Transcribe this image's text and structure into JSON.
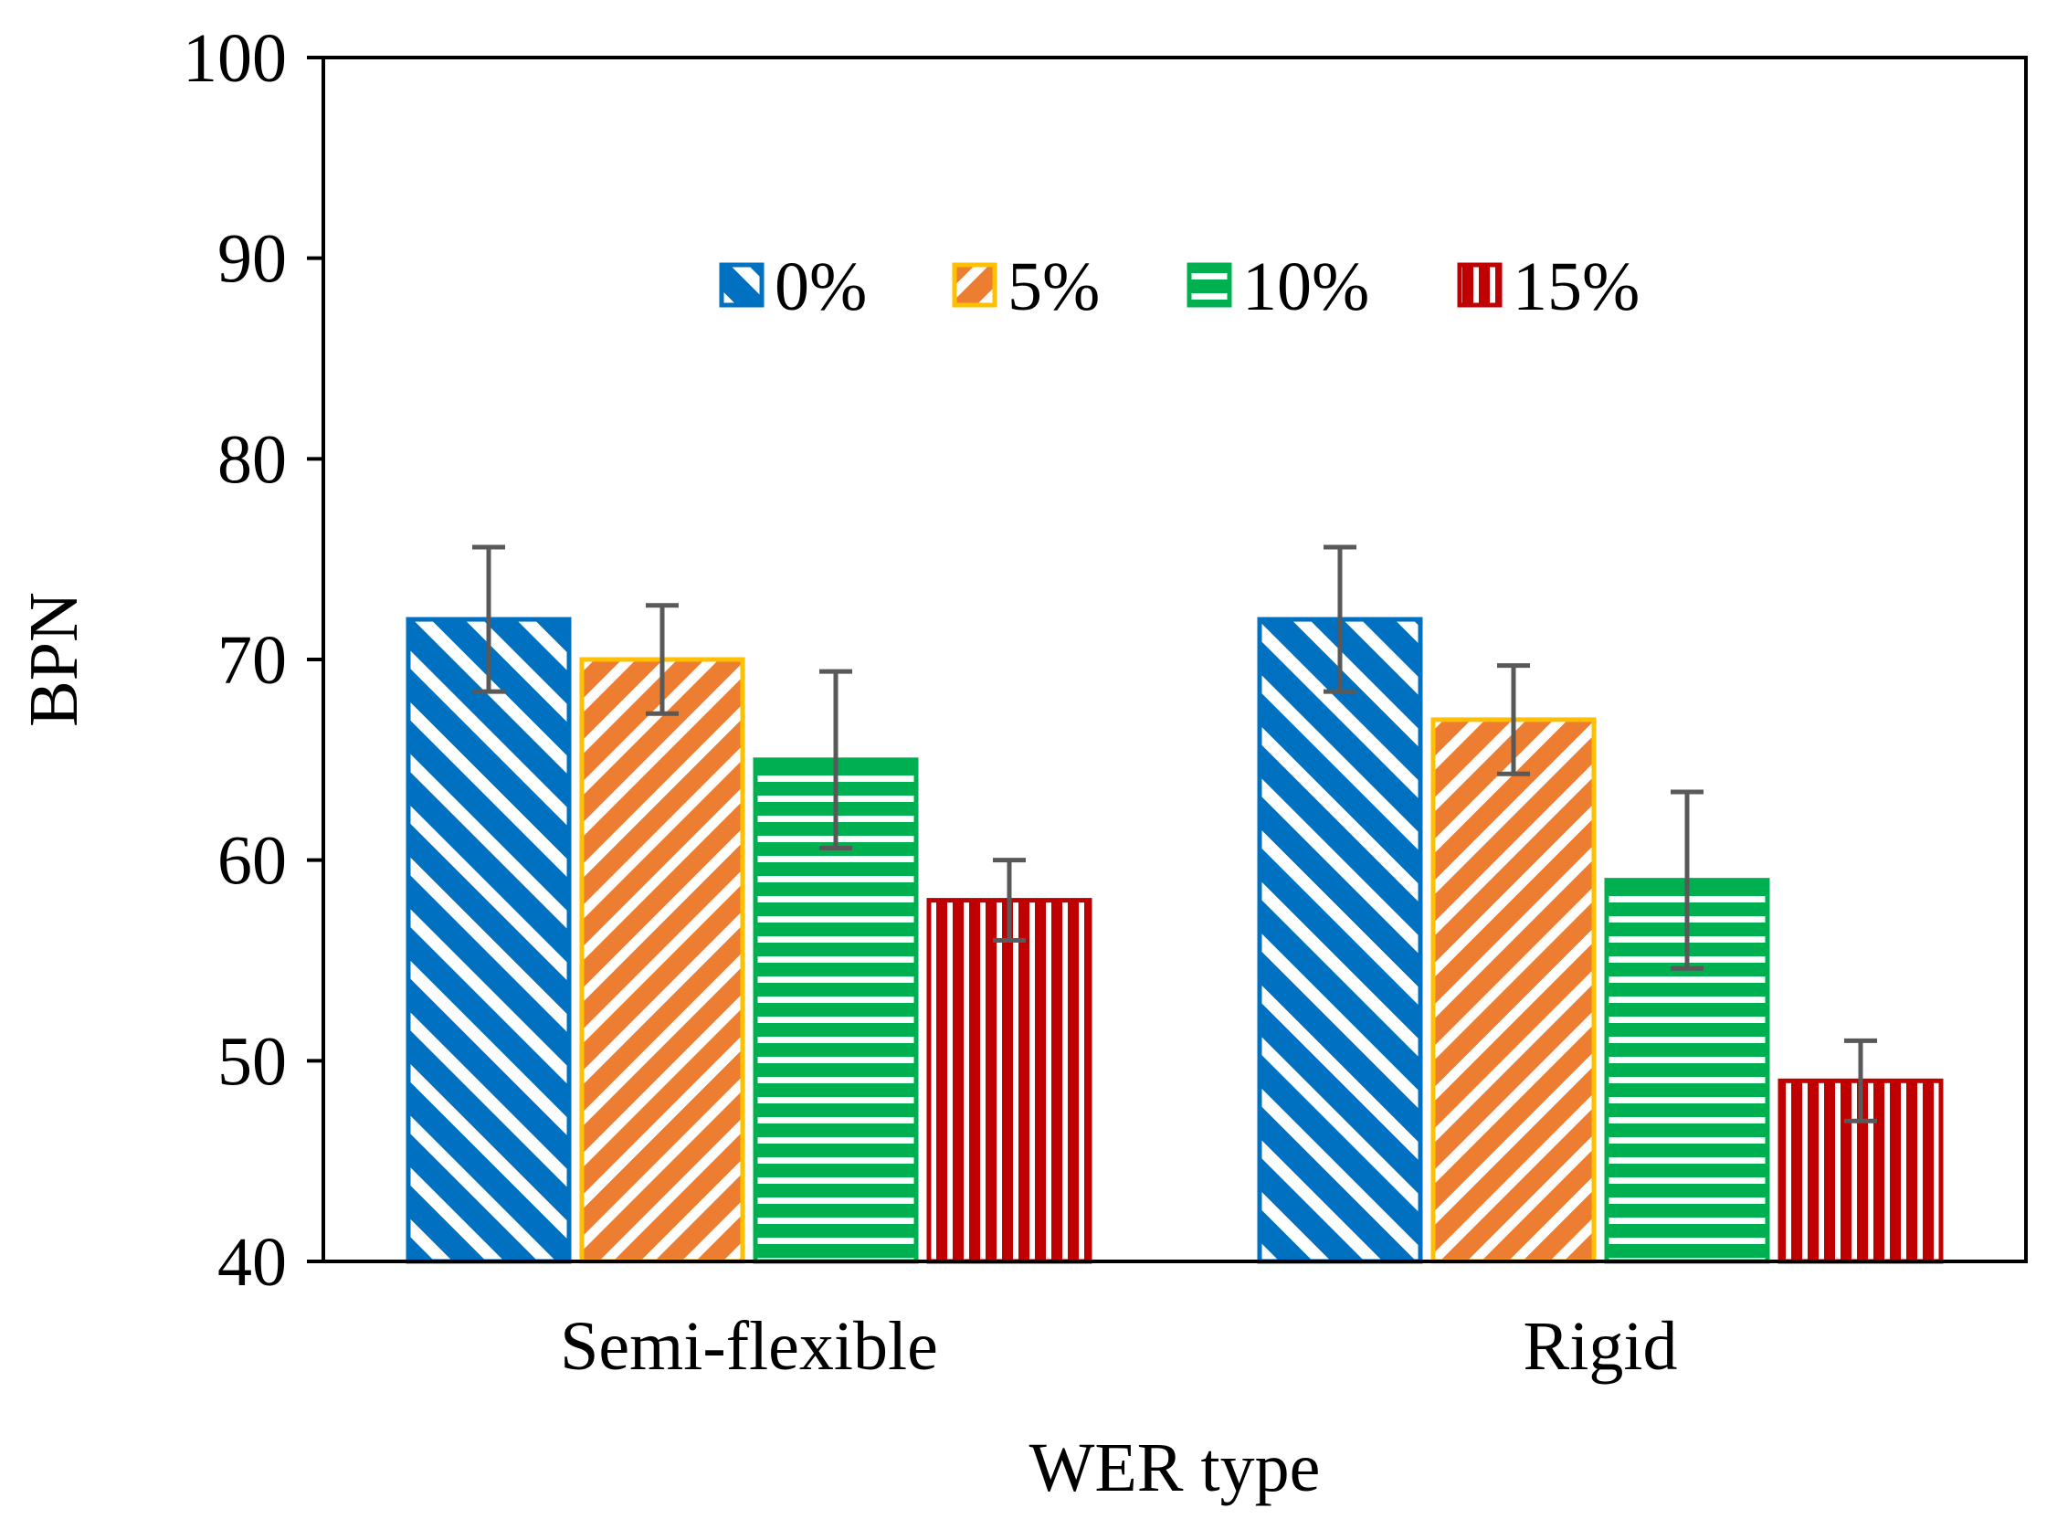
{
  "chart_data": {
    "type": "bar",
    "title": "",
    "xlabel": "WER type",
    "ylabel": "BPN",
    "ylim": [
      40,
      100
    ],
    "yticks": [
      40,
      50,
      60,
      70,
      80,
      90,
      100
    ],
    "categories": [
      "Semi-flexible",
      "Rigid"
    ],
    "legend_position": "top-center",
    "series": [
      {
        "name": "0%",
        "values": [
          72,
          72
        ],
        "errors": [
          3.6,
          3.6
        ],
        "color": "#0070C0",
        "pattern": "diagonal-down"
      },
      {
        "name": "5%",
        "values": [
          70,
          67
        ],
        "errors": [
          2.7,
          2.7
        ],
        "color": "#ED7D31",
        "border": "#FFC000",
        "pattern": "diagonal-up"
      },
      {
        "name": "10%",
        "values": [
          65,
          59
        ],
        "errors": [
          4.4,
          4.4
        ],
        "color": "#00B050",
        "pattern": "horizontal"
      },
      {
        "name": "15%",
        "values": [
          58,
          49
        ],
        "errors": [
          2.0,
          2.0
        ],
        "color": "#C00000",
        "pattern": "vertical"
      }
    ],
    "error_bar_color": "#595959"
  }
}
